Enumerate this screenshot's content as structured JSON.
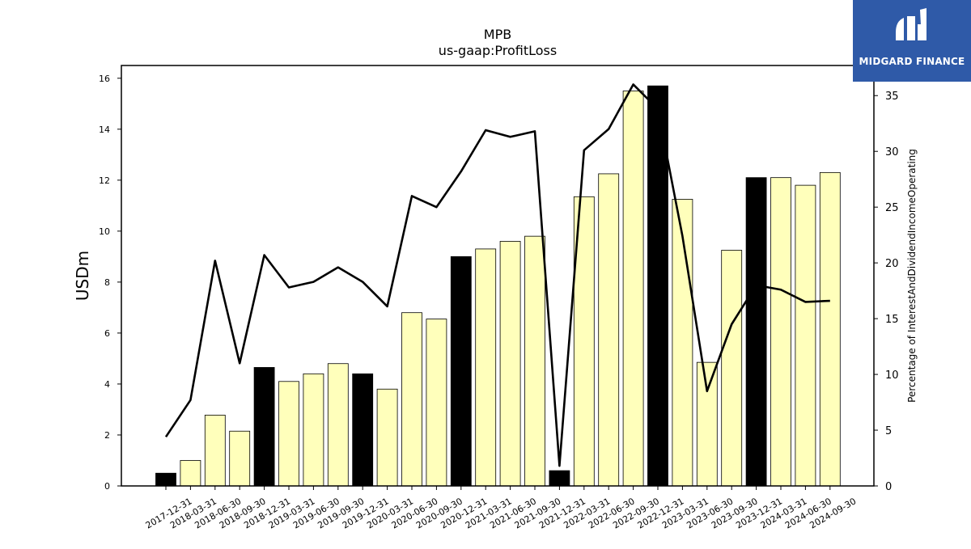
{
  "logo": {
    "text": "MIDGARD FINANCE"
  },
  "chart_data": {
    "type": "bar",
    "title": "MPB",
    "subtitle": "us-gaap:ProfitLoss",
    "ylabel": "USDm",
    "y2label": "Percentage of InterestAndDividendIncomeOperating",
    "ylim": [
      0,
      16.5
    ],
    "y2lim": [
      0,
      37.7
    ],
    "yticks": [
      0,
      2,
      4,
      6,
      8,
      10,
      12,
      14,
      16
    ],
    "y2ticks": [
      0,
      5,
      10,
      15,
      20,
      25,
      30,
      35
    ],
    "categories": [
      "2017-12-31",
      "2018-03-31",
      "2018-06-30",
      "2018-09-30",
      "2018-12-31",
      "2019-03-31",
      "2019-06-30",
      "2019-09-30",
      "2019-12-31",
      "2020-03-31",
      "2020-06-30",
      "2020-09-30",
      "2020-12-31",
      "2021-03-31",
      "2021-06-30",
      "2021-09-30",
      "2021-12-31",
      "2022-03-31",
      "2022-06-30",
      "2022-09-30",
      "2022-12-31",
      "2023-03-31",
      "2023-06-30",
      "2023-09-30",
      "2023-12-31",
      "2024-03-31",
      "2024-06-30",
      "2024-09-30"
    ],
    "series": [
      {
        "kind": "bar",
        "values": [
          0.5,
          1.0,
          2.78,
          2.15,
          4.65,
          4.1,
          4.4,
          4.8,
          4.4,
          3.8,
          6.8,
          6.55,
          9.0,
          9.3,
          9.6,
          9.8,
          0.6,
          11.35,
          12.25,
          15.5,
          15.7,
          11.25,
          4.85,
          9.25,
          12.1,
          12.1,
          11.8,
          12.3
        ],
        "annual": [
          true,
          false,
          false,
          false,
          true,
          false,
          false,
          false,
          true,
          false,
          false,
          false,
          true,
          false,
          false,
          false,
          true,
          false,
          false,
          false,
          true,
          false,
          false,
          false,
          true,
          false,
          false,
          false
        ]
      },
      {
        "kind": "line",
        "axis": "right",
        "values": [
          4.4,
          7.7,
          20.2,
          11.0,
          20.7,
          17.8,
          18.3,
          19.6,
          18.3,
          16.1,
          26.0,
          25.0,
          28.2,
          31.9,
          31.3,
          31.8,
          1.8,
          30.1,
          32.0,
          36.0,
          33.8,
          22.4,
          8.5,
          14.5,
          18.0,
          17.6,
          16.5,
          16.6
        ]
      }
    ],
    "colors": {
      "annual_bar": "#000000",
      "quarter_bar": "#ffffbb",
      "line": "#000000",
      "logo_bg": "#2f5aa8"
    },
    "grid": false,
    "legend": "none"
  }
}
